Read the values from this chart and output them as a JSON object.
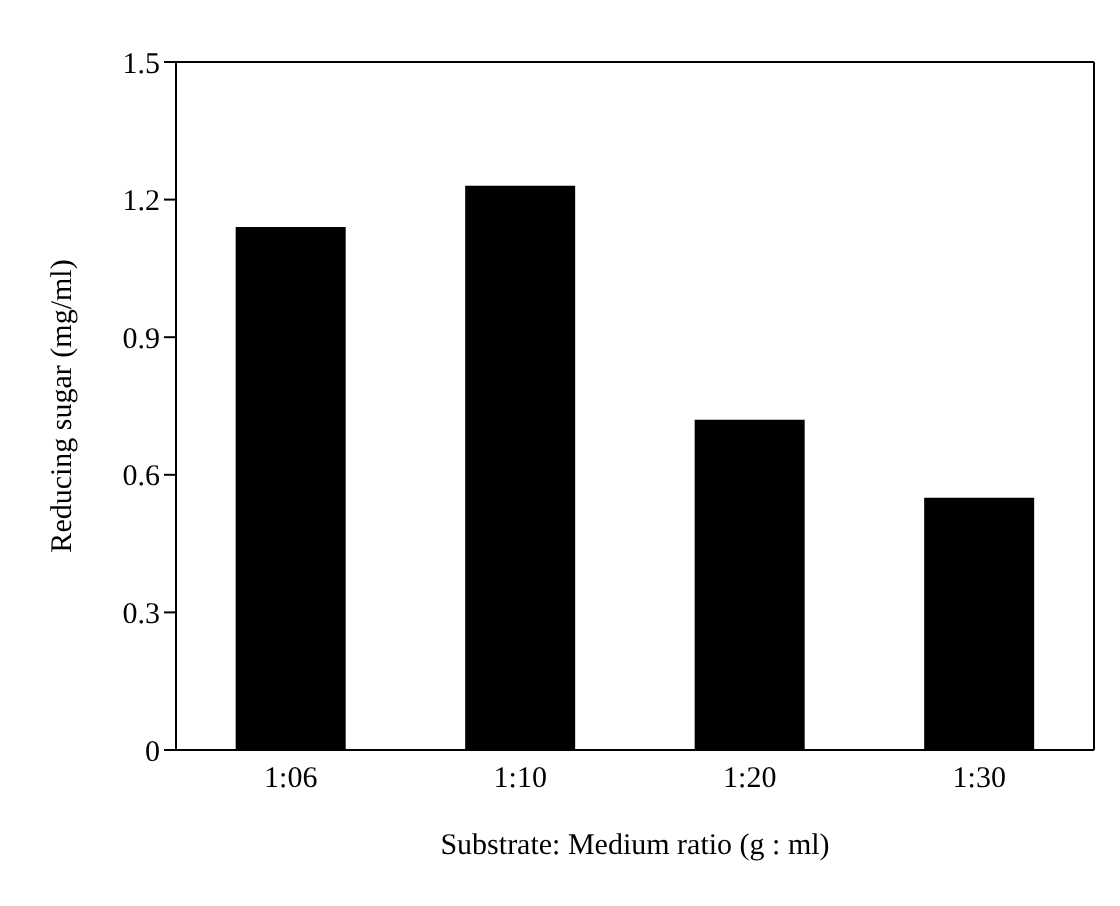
{
  "chart_data": {
    "type": "bar",
    "xlabel": "Substrate: Medium ratio (g : ml)",
    "ylabel": "Reducing sugar (mg/ml)",
    "categories": [
      "1:06",
      "1:10",
      "1:20",
      "1:30"
    ],
    "values": [
      1.14,
      1.23,
      0.72,
      0.55
    ],
    "color": "#000000",
    "ylim": [
      0,
      1.5
    ],
    "yticks": [
      0,
      0.3,
      0.6,
      0.9,
      1.2,
      1.5
    ]
  }
}
